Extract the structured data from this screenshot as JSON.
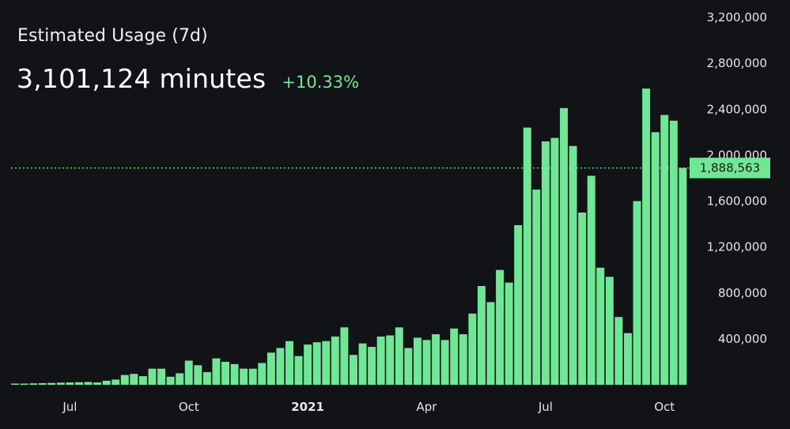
{
  "header": {
    "title": "Estimated Usage (7d)",
    "value": "3,101,124 minutes",
    "change": "+10.33%"
  },
  "colors": {
    "background": "#121316",
    "bar": "#6ee895",
    "positive": "#6ee895",
    "reference_line": "#6ee895",
    "text": "#e6e6e6"
  },
  "chart_data": {
    "type": "bar",
    "title": "Estimated Usage (7d)",
    "xlabel": "",
    "ylabel": "",
    "ylim": [
      0,
      3200000
    ],
    "y_ticks": [
      400000,
      800000,
      1200000,
      1600000,
      2000000,
      2400000,
      2800000,
      3200000
    ],
    "y_tick_labels": [
      "400,000",
      "800,000",
      "1,200,000",
      "1,600,000",
      "2,000,000",
      "2,400,000",
      "2,800,000",
      "3,200,000"
    ],
    "x_tick_labels": [
      {
        "label": "Jul",
        "bar_index": 6,
        "bold": false
      },
      {
        "label": "Oct",
        "bar_index": 19,
        "bold": false
      },
      {
        "label": "2021",
        "bar_index": 32,
        "bold": true
      },
      {
        "label": "Apr",
        "bar_index": 45,
        "bold": false
      },
      {
        "label": "Jul",
        "bar_index": 58,
        "bold": false
      },
      {
        "label": "Oct",
        "bar_index": 71,
        "bold": false
      }
    ],
    "current_value": 1888563,
    "current_value_label": "1,888,563",
    "grid": false,
    "values": [
      10000,
      10000,
      12000,
      14000,
      16000,
      18000,
      20000,
      22000,
      24000,
      20000,
      35000,
      45000,
      85000,
      95000,
      75000,
      140000,
      140000,
      70000,
      100000,
      210000,
      170000,
      110000,
      230000,
      200000,
      180000,
      140000,
      140000,
      190000,
      280000,
      320000,
      380000,
      250000,
      350000,
      370000,
      380000,
      420000,
      500000,
      260000,
      360000,
      330000,
      420000,
      430000,
      500000,
      320000,
      410000,
      390000,
      440000,
      390000,
      490000,
      440000,
      620000,
      860000,
      720000,
      1000000,
      890000,
      1390000,
      2240000,
      1700000,
      2120000,
      2150000,
      2410000,
      2080000,
      1500000,
      1820000,
      1020000,
      940000,
      590000,
      450000,
      1600000,
      2580000,
      2200000,
      2350000,
      2300000,
      1888563
    ]
  }
}
